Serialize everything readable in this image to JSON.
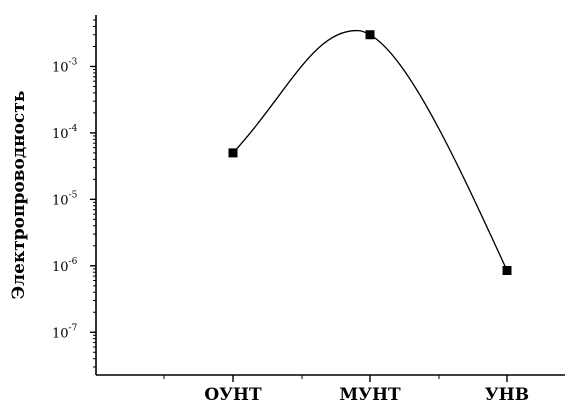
{
  "chart_data": {
    "type": "line",
    "ylabel": "Электропроводность",
    "xlabel": "",
    "yscale": "log",
    "ylim": [
      3e-08,
      0.005
    ],
    "categories": [
      "ОУНТ",
      "МУНТ",
      "УНВ"
    ],
    "series": [
      {
        "values": [
          5e-05,
          0.003,
          8.5e-07
        ],
        "marker": "square",
        "line": "smooth",
        "color": "#000000"
      }
    ],
    "yticks": [
      {
        "mantissa": "10",
        "exp": "-7"
      },
      {
        "mantissa": "10",
        "exp": "-6"
      },
      {
        "mantissa": "10",
        "exp": "-5"
      },
      {
        "mantissa": "10",
        "exp": "-4"
      },
      {
        "mantissa": "10",
        "exp": "-3"
      }
    ],
    "grid": false,
    "legend": "none"
  }
}
